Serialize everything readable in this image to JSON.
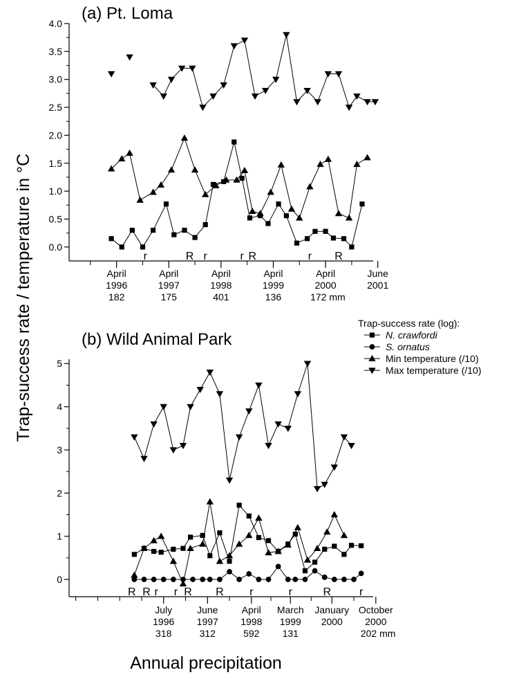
{
  "y_axis_title": "Trap-success rate / temperature in °C",
  "x_axis_title": "Annual precipitation",
  "legend": {
    "title": "Trap-success rate (log):",
    "items": [
      {
        "label": "N. crawfordi",
        "italic": true,
        "marker": "square"
      },
      {
        "label": "S. ornatus",
        "italic": true,
        "marker": "circle"
      },
      {
        "label": "Min temperature (/10)",
        "italic": false,
        "marker": "triangle-up"
      },
      {
        "label": "Max temperature (/10)",
        "italic": false,
        "marker": "triangle-down"
      }
    ]
  },
  "chart_data": [
    {
      "type": "line",
      "title": "(a) Pt. Loma",
      "ylim": [
        -0.25,
        4.0
      ],
      "yticks": [
        0.0,
        0.5,
        1.0,
        1.5,
        2.0,
        2.5,
        3.0,
        3.5,
        4.0
      ],
      "ytick_labels": [
        "0.0",
        "0.5",
        "1.0",
        "1.5",
        "2.0",
        "2.5",
        "3.0",
        "3.5",
        "4.0"
      ],
      "xlim": [
        0,
        100
      ],
      "series": [
        {
          "name": "N. crawfordi",
          "marker": "square",
          "segments": [
            [
              [
                4,
                0.15
              ],
              [
                8,
                0
              ],
              [
                12,
                0.3
              ],
              [
                16,
                0
              ],
              [
                20,
                0.3
              ],
              [
                25,
                0.77
              ],
              [
                28,
                0.22
              ],
              [
                32,
                0.3
              ],
              [
                36,
                0.17
              ],
              [
                40,
                0.4
              ],
              [
                43,
                1.12
              ],
              [
                47,
                1.17
              ],
              [
                51,
                1.88
              ],
              [
                54,
                1.23
              ],
              [
                57,
                0.52
              ],
              [
                61,
                0.56
              ],
              [
                64,
                0.42
              ],
              [
                68,
                0.77
              ],
              [
                71,
                0.56
              ],
              [
                75,
                0.07
              ],
              [
                79,
                0.15
              ],
              [
                82,
                0.28
              ],
              [
                86,
                0.28
              ],
              [
                89,
                0.16
              ],
              [
                93,
                0.15
              ],
              [
                96,
                0
              ],
              [
                100,
                0.77
              ]
            ]
          ]
        },
        {
          "name": "Min temperature (/10)",
          "marker": "triangle-up",
          "segments": [
            [
              [
                4,
                1.4
              ],
              [
                8,
                1.58
              ],
              [
                11,
                1.68
              ],
              [
                15,
                0.84
              ],
              [
                20,
                0.98
              ],
              [
                23,
                1.11
              ],
              [
                27,
                1.38
              ],
              [
                32,
                1.95
              ],
              [
                36,
                1.38
              ],
              [
                40,
                0.94
              ],
              [
                44,
                1.1
              ],
              [
                48,
                1.2
              ],
              [
                52,
                1.2
              ],
              [
                55,
                1.37
              ],
              [
                58,
                0.64
              ],
              [
                61,
                0.6
              ],
              [
                65,
                0.98
              ],
              [
                69,
                1.47
              ],
              [
                73,
                0.68
              ],
              [
                76,
                0.52
              ],
              [
                80,
                1.08
              ],
              [
                84,
                1.48
              ],
              [
                87,
                1.57
              ],
              [
                91,
                0.6
              ],
              [
                95,
                0.52
              ],
              [
                98,
                1.48
              ],
              [
                102,
                1.6
              ]
            ]
          ]
        },
        {
          "name": "Max temperature (/10)",
          "marker": "triangle-down",
          "segments": [
            [
              [
                4,
                3.1
              ]
            ],
            [
              [
                11,
                3.4
              ]
            ],
            [
              [
                20,
                2.9
              ],
              [
                24,
                2.7
              ],
              [
                27,
                3.0
              ],
              [
                31,
                3.2
              ],
              [
                35,
                3.2
              ],
              [
                39,
                2.5
              ],
              [
                43,
                2.7
              ],
              [
                47,
                2.9
              ],
              [
                51,
                3.6
              ],
              [
                55,
                3.7
              ],
              [
                59,
                2.7
              ],
              [
                63,
                2.8
              ],
              [
                67,
                3.0
              ],
              [
                71,
                3.8
              ],
              [
                75,
                2.6
              ],
              [
                79,
                2.8
              ],
              [
                83,
                2.6
              ],
              [
                87,
                3.1
              ],
              [
                91,
                3.1
              ],
              [
                95,
                2.5
              ],
              [
                98,
                2.7
              ],
              [
                102,
                2.6
              ],
              [
                105,
                2.6
              ]
            ]
          ]
        }
      ],
      "events": [
        {
          "x": 17,
          "label": "r"
        },
        {
          "x": 34,
          "label": "R"
        },
        {
          "x": 40,
          "label": "r"
        },
        {
          "x": 54,
          "label": "r"
        },
        {
          "x": 58,
          "label": "R"
        },
        {
          "x": 80,
          "label": "r"
        },
        {
          "x": 91,
          "label": "R"
        }
      ],
      "date_labels": [
        {
          "x": 6,
          "lines": [
            "April",
            "1996",
            "182"
          ]
        },
        {
          "x": 26,
          "lines": [
            "April",
            "1997",
            "175"
          ]
        },
        {
          "x": 46,
          "lines": [
            "April",
            "1998",
            "401"
          ]
        },
        {
          "x": 66,
          "lines": [
            "April",
            "1999",
            "136"
          ]
        },
        {
          "x": 86,
          "lines": [
            "April",
            "2000",
            "172 mm"
          ]
        },
        {
          "x": 106,
          "lines": [
            "June",
            "2001",
            ""
          ]
        }
      ]
    },
    {
      "type": "line",
      "title": "(b) Wild Animal Park",
      "ylim": [
        -0.4,
        5.1
      ],
      "yticks": [
        0,
        1,
        2,
        3,
        4,
        5
      ],
      "ytick_labels": [
        "0",
        "1",
        "2",
        "3",
        "4",
        "5"
      ],
      "xlim": [
        0,
        100
      ],
      "series": [
        {
          "name": "N. crawfordi",
          "marker": "square",
          "segments": [
            [
              [
                12,
                0.58
              ],
              [
                16,
                0.72
              ],
              [
                20,
                0.65
              ],
              [
                23,
                0.63
              ],
              [
                28,
                0.7
              ],
              [
                32,
                0.72
              ],
              [
                35,
                0.98
              ],
              [
                40,
                1.02
              ],
              [
                43,
                0.55
              ],
              [
                47,
                1.08
              ],
              [
                51,
                0.42
              ],
              [
                55,
                1.72
              ],
              [
                59,
                1.47
              ],
              [
                63,
                0.97
              ],
              [
                67,
                0.9
              ],
              [
                71,
                0.65
              ],
              [
                75,
                0.82
              ],
              [
                78,
                1.05
              ],
              [
                82,
                0.2
              ],
              [
                86,
                0.4
              ],
              [
                90,
                0.7
              ],
              [
                94,
                0.77
              ],
              [
                98,
                0.58
              ],
              [
                101,
                0.79
              ],
              [
                105,
                0.78
              ]
            ]
          ]
        },
        {
          "name": "S. ornatus",
          "marker": "circle",
          "segments": [
            [
              [
                12,
                0
              ],
              [
                16,
                0
              ],
              [
                20,
                0
              ],
              [
                24,
                0
              ],
              [
                28,
                0
              ],
              [
                32,
                0
              ],
              [
                36,
                0
              ],
              [
                40,
                0
              ],
              [
                43,
                0
              ],
              [
                47,
                0
              ],
              [
                51,
                0.18
              ],
              [
                55,
                0
              ],
              [
                59,
                0.13
              ],
              [
                63,
                0
              ],
              [
                67,
                0
              ],
              [
                71,
                0.3
              ],
              [
                75,
                0
              ],
              [
                78,
                0
              ],
              [
                82,
                0
              ],
              [
                86,
                0.2
              ],
              [
                90,
                0.05
              ],
              [
                94,
                0
              ],
              [
                98,
                0
              ],
              [
                102,
                0
              ],
              [
                105,
                0.14
              ]
            ]
          ]
        },
        {
          "name": "Min temperature (/10)",
          "marker": "triangle-up",
          "segments": [
            [
              [
                12,
                0.1
              ],
              [
                16,
                0.72
              ],
              [
                20,
                0.9
              ],
              [
                23,
                1.0
              ],
              [
                28,
                0.42
              ],
              [
                32,
                -0.1
              ],
              [
                35,
                0.72
              ],
              [
                40,
                0.82
              ],
              [
                43,
                1.8
              ],
              [
                47,
                0.42
              ],
              [
                51,
                0.55
              ],
              [
                55,
                0.82
              ],
              [
                59,
                1.02
              ],
              [
                63,
                1.42
              ],
              [
                67,
                0.62
              ],
              [
                71,
                0.65
              ],
              [
                75,
                0.8
              ],
              [
                79,
                1.2
              ],
              [
                83,
                0.45
              ],
              [
                87,
                0.72
              ],
              [
                91,
                1.1
              ],
              [
                94,
                1.5
              ],
              [
                98,
                1.02
              ]
            ]
          ]
        },
        {
          "name": "Max temperature (/10)",
          "marker": "triangle-down",
          "segments": [
            [
              [
                12,
                3.3
              ],
              [
                16,
                2.8
              ],
              [
                20,
                3.6
              ],
              [
                24,
                4.0
              ],
              [
                28,
                3.0
              ],
              [
                32,
                3.1
              ],
              [
                35,
                4.0
              ],
              [
                39,
                4.4
              ],
              [
                43,
                4.8
              ],
              [
                47,
                4.3
              ],
              [
                51,
                2.3
              ],
              [
                55,
                3.3
              ],
              [
                59,
                3.9
              ],
              [
                63,
                4.5
              ],
              [
                67,
                3.1
              ],
              [
                71,
                3.6
              ],
              [
                75,
                3.5
              ],
              [
                79,
                4.3
              ],
              [
                83,
                5.0
              ],
              [
                87,
                2.1
              ],
              [
                90,
                2.2
              ],
              [
                94,
                2.6
              ],
              [
                98,
                3.3
              ],
              [
                101,
                3.1
              ]
            ]
          ]
        }
      ],
      "events": [
        {
          "x": 11,
          "label": "R"
        },
        {
          "x": 17,
          "label": "R"
        },
        {
          "x": 21,
          "label": "r"
        },
        {
          "x": 29,
          "label": "r"
        },
        {
          "x": 34,
          "label": "R"
        },
        {
          "x": 47,
          "label": "R"
        },
        {
          "x": 60,
          "label": "r"
        },
        {
          "x": 76,
          "label": "r"
        },
        {
          "x": 91,
          "label": "R"
        },
        {
          "x": 105,
          "label": "r"
        }
      ],
      "date_labels": [
        {
          "x": 24,
          "lines": [
            "July",
            "1996",
            "318"
          ]
        },
        {
          "x": 42,
          "lines": [
            "June",
            "1997",
            "312"
          ]
        },
        {
          "x": 60,
          "lines": [
            "April",
            "1998",
            "592"
          ]
        },
        {
          "x": 76,
          "lines": [
            "March",
            "1999",
            "131"
          ]
        },
        {
          "x": 93,
          "lines": [
            "January",
            "2000",
            ""
          ]
        },
        {
          "x": 111,
          "lines": [
            "October",
            "2000",
            "202 mm"
          ]
        }
      ]
    }
  ]
}
